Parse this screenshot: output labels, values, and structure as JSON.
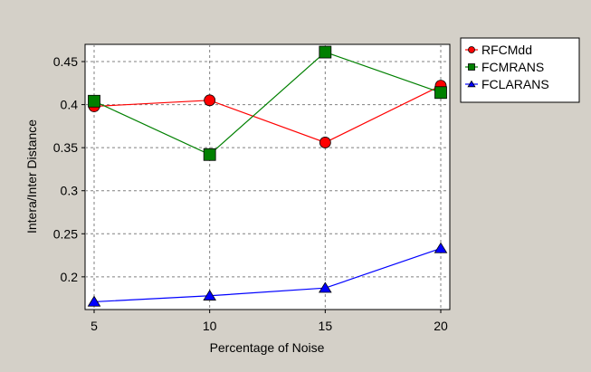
{
  "chart_data": {
    "type": "line",
    "xlabel": "Percentage of Noise",
    "ylabel": "Intera/Inter Distance",
    "x": [
      5,
      10,
      15,
      20
    ],
    "xlim": [
      5,
      20
    ],
    "ylim": [
      0.162,
      0.47
    ],
    "xticks": [
      "5",
      "10",
      "15",
      "20"
    ],
    "yticks": [
      {
        "value": 0.2,
        "label": "0.2"
      },
      {
        "value": 0.25,
        "label": "0.25"
      },
      {
        "value": 0.3,
        "label": "0.3"
      },
      {
        "value": 0.35,
        "label": "0.35"
      },
      {
        "value": 0.4,
        "label": "0.4"
      },
      {
        "value": 0.45,
        "label": "0.45"
      }
    ],
    "grid": true,
    "legend": "top-right",
    "series": [
      {
        "name": "RFCMdd",
        "values": [
          0.398,
          0.405,
          0.356,
          0.422
        ],
        "color": "#ff0000",
        "marker": "circle"
      },
      {
        "name": "FCMRANS",
        "values": [
          0.404,
          0.342,
          0.461,
          0.414
        ],
        "color": "#008000",
        "marker": "square"
      },
      {
        "name": "FCLARANS",
        "values": [
          0.171,
          0.178,
          0.187,
          0.233
        ],
        "color": "#0000ff",
        "marker": "triangle"
      }
    ]
  }
}
